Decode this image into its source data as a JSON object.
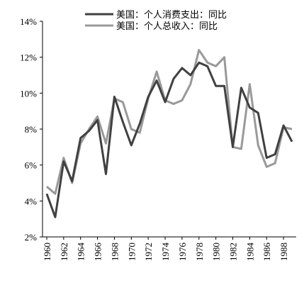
{
  "chart_data": {
    "type": "line",
    "x": [
      1960,
      1961,
      1962,
      1963,
      1964,
      1965,
      1966,
      1967,
      1968,
      1969,
      1970,
      1971,
      1972,
      1973,
      1974,
      1975,
      1976,
      1977,
      1978,
      1979,
      1980,
      1981,
      1982,
      1983,
      1984,
      1985,
      1986,
      1987,
      1988,
      1989
    ],
    "series": [
      {
        "name": "美国：个人消费支出：同比",
        "color": "#404040",
        "values": [
          4.4,
          3.1,
          6.2,
          5.1,
          7.5,
          7.9,
          8.5,
          5.5,
          9.8,
          8.4,
          7.1,
          8.3,
          9.8,
          10.7,
          9.5,
          10.8,
          11.4,
          11.0,
          11.7,
          11.5,
          10.4,
          10.4,
          7.0,
          10.3,
          9.2,
          8.9,
          6.4,
          6.6,
          8.2,
          7.3
        ]
      },
      {
        "name": "美国：个人总收入：同比",
        "color": "#999999",
        "values": [
          4.8,
          4.4,
          6.4,
          5.0,
          7.2,
          8.0,
          8.7,
          7.2,
          9.7,
          9.5,
          8.0,
          7.8,
          9.7,
          11.2,
          9.6,
          9.4,
          9.6,
          10.5,
          12.4,
          11.7,
          11.5,
          12.0,
          7.0,
          6.9,
          10.5,
          7.1,
          5.9,
          6.1,
          8.1,
          8.0
        ]
      }
    ],
    "xlim": [
      1959.5,
      1989.5
    ],
    "xticks": [
      1960,
      1962,
      1964,
      1966,
      1968,
      1970,
      1972,
      1974,
      1976,
      1978,
      1980,
      1982,
      1984,
      1986,
      1988
    ],
    "ylim": [
      2,
      14
    ],
    "yticks": [
      {
        "value": 2,
        "label": "2%"
      },
      {
        "value": 4,
        "label": "4%"
      },
      {
        "value": 6,
        "label": "6%"
      },
      {
        "value": 8,
        "label": "8%"
      },
      {
        "value": 10,
        "label": "10%"
      },
      {
        "value": 12,
        "label": "12%"
      },
      {
        "value": 14,
        "label": "14%"
      }
    ],
    "legend": "upper-left",
    "grid": false
  }
}
